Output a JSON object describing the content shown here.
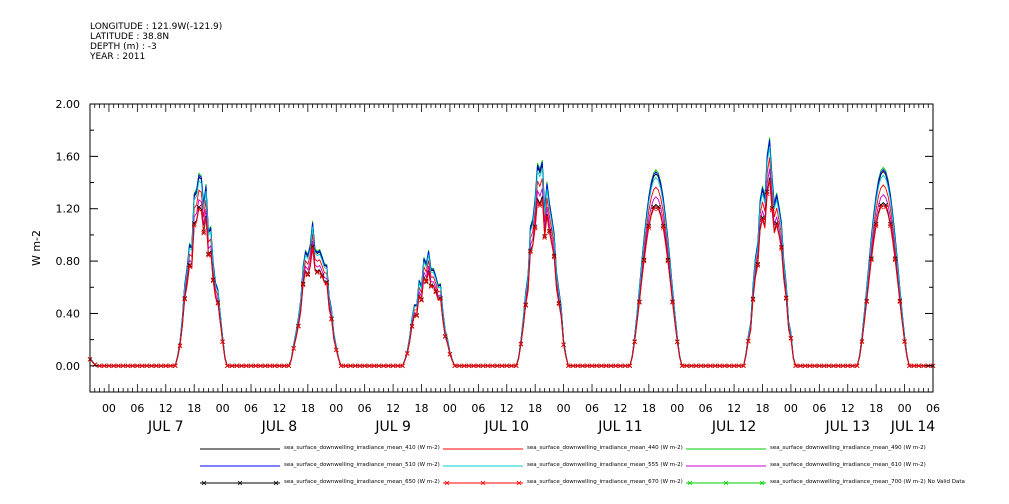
{
  "meta": {
    "longitude": "LONGITUDE : 121.9W(-121.9)",
    "latitude": "LATITUDE : 38.8N",
    "depth": "DEPTH (m) : -3",
    "year": "YEAR : 2011"
  },
  "chart_data": {
    "type": "line",
    "title": "",
    "xlabel": "",
    "ylabel": "W m-2",
    "x_range": [
      "2011-07-06T20:00",
      "2011-07-14T06:00"
    ],
    "ylim": [
      -0.2,
      2.0
    ],
    "y_ticks": [
      "0.00",
      "0.40",
      "0.80",
      "1.20",
      "1.60",
      "2.00"
    ],
    "x_hour_labels": [
      "06",
      "12",
      "18",
      "00"
    ],
    "day_labels": [
      "JUL 7",
      "JUL 8",
      "JUL 9",
      "JUL 10",
      "JUL 11",
      "JUL 12",
      "JUL 13",
      "JUL 14"
    ],
    "grid": false,
    "legend_position": "bottom",
    "daily_peaks": [
      {
        "day": "JUL 7",
        "noon_hour": 19.5,
        "half_width_h": 5.5,
        "peak_410": 1.46,
        "noisy": true
      },
      {
        "day": "JUL 8",
        "noon_hour": 19.5,
        "half_width_h": 5.5,
        "peak_410": 1.1,
        "noisy": true
      },
      {
        "day": "JUL 9",
        "noon_hour": 19.5,
        "half_width_h": 5.5,
        "peak_410": 0.9,
        "noisy": true
      },
      {
        "day": "JUL 10",
        "noon_hour": 19.5,
        "half_width_h": 5.5,
        "peak_410": 1.6,
        "noisy": true
      },
      {
        "day": "JUL 11",
        "noon_hour": 19.5,
        "half_width_h": 5.5,
        "peak_410": 1.63,
        "noisy": false
      },
      {
        "day": "JUL 12",
        "noon_hour": 19.5,
        "half_width_h": 5.5,
        "peak_410": 1.62,
        "noisy": true
      },
      {
        "day": "JUL 13",
        "noon_hour": 19.5,
        "half_width_h": 5.5,
        "peak_410": 1.65,
        "noisy": false
      }
    ],
    "series": [
      {
        "name": "sea_surface_downwelling_irradiance_mean_410 (W m-2)",
        "color": "#000000",
        "scale": 1.0,
        "marker": "none"
      },
      {
        "name": "sea_surface_downwelling_irradiance_mean_440 (W m-2)",
        "color": "#ff0000",
        "scale": 0.93,
        "marker": "none"
      },
      {
        "name": "sea_surface_downwelling_irradiance_mean_490 (W m-2)",
        "color": "#00cc00",
        "scale": 1.02,
        "marker": "none"
      },
      {
        "name": "sea_surface_downwelling_irradiance_mean_510 (W m-2)",
        "color": "#0000ff",
        "scale": 1.01,
        "marker": "none"
      },
      {
        "name": "sea_surface_downwelling_irradiance_mean_555 (W m-2)",
        "color": "#00cccc",
        "scale": 0.98,
        "marker": "none"
      },
      {
        "name": "sea_surface_downwelling_irradiance_mean_610 (W m-2)",
        "color": "#cc00cc",
        "scale": 0.88,
        "marker": "none"
      },
      {
        "name": "sea_surface_downwelling_irradiance_mean_650 (W m-2)",
        "color": "#000000",
        "scale": 0.84,
        "marker": "x"
      },
      {
        "name": "sea_surface_downwelling_irradiance_mean_670 (W m-2)",
        "color": "#ff0000",
        "scale": 0.83,
        "marker": "x"
      },
      {
        "name": "sea_surface_downwelling_irradiance_mean_700 (W m-2) No Valid Data",
        "color": "#00cc00",
        "scale": 0.0,
        "marker": "x"
      }
    ]
  }
}
